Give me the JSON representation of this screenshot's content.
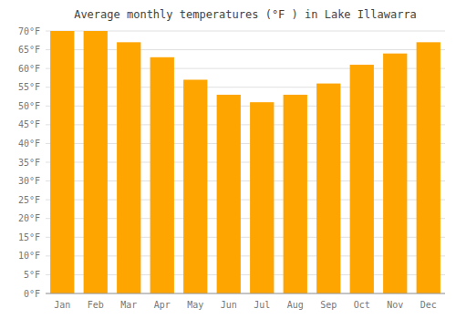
{
  "chart_data": {
    "type": "bar",
    "title": "Average monthly temperatures (°F ) in Lake Illawarra",
    "categories": [
      "Jan",
      "Feb",
      "Mar",
      "Apr",
      "May",
      "Jun",
      "Jul",
      "Aug",
      "Sep",
      "Oct",
      "Nov",
      "Dec"
    ],
    "values": [
      70,
      70,
      67,
      63,
      57,
      53,
      51,
      53,
      56,
      61,
      64,
      67
    ],
    "color": "#FFA500",
    "ylim": [
      0,
      70
    ],
    "yticks": [
      {
        "value": 0,
        "label": "0°F"
      },
      {
        "value": 5,
        "label": "5°F"
      },
      {
        "value": 10,
        "label": "10°F"
      },
      {
        "value": 15,
        "label": "15°F"
      },
      {
        "value": 20,
        "label": "20°F"
      },
      {
        "value": 25,
        "label": "25°F"
      },
      {
        "value": 30,
        "label": "30°F"
      },
      {
        "value": 35,
        "label": "35°F"
      },
      {
        "value": 40,
        "label": "40°F"
      },
      {
        "value": 45,
        "label": "45°F"
      },
      {
        "value": 50,
        "label": "50°F"
      },
      {
        "value": 55,
        "label": "55°F"
      },
      {
        "value": 60,
        "label": "60°F"
      },
      {
        "value": 65,
        "label": "65°F"
      },
      {
        "value": 70,
        "label": "70°F"
      }
    ],
    "grid": true
  }
}
